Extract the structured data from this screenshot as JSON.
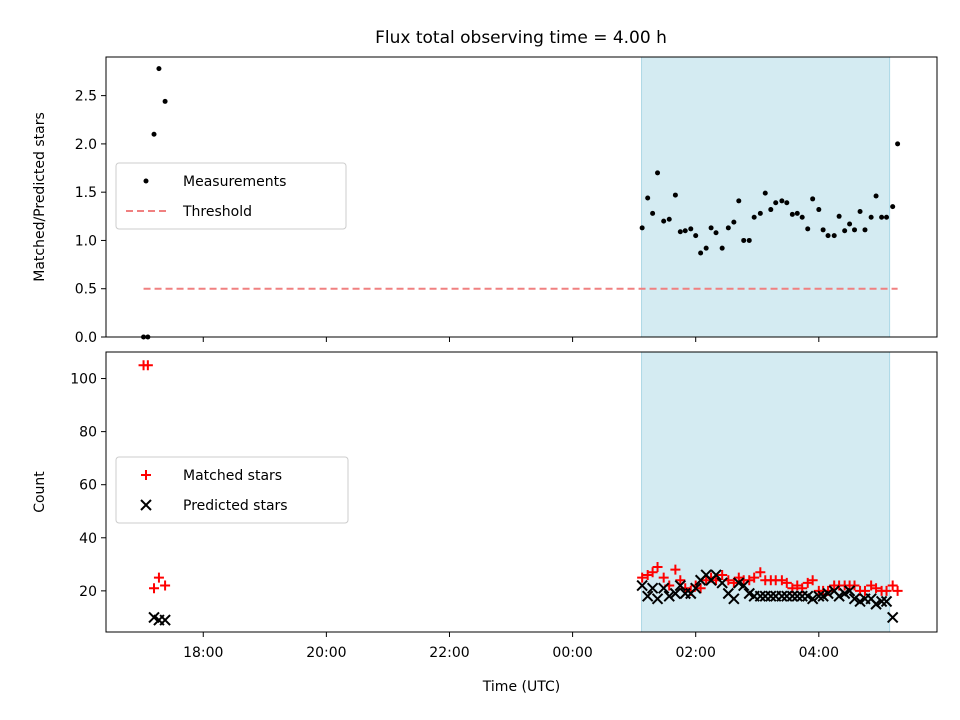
{
  "title": "Flux total observing time = 4.00 h",
  "colors": {
    "measure": "#000000",
    "threshold": "#f08080",
    "matched": "#ff0000",
    "predicted": "#000000",
    "span_fill": "#add8e6"
  },
  "chart_data": [
    {
      "type": "scatter",
      "ylabel": "Matched/Predicted stars",
      "xlim_hours": [
        16.42,
        29.92
      ],
      "ylim": [
        0,
        2.9
      ],
      "yticks": [
        "0.0",
        "0.5",
        "1.0",
        "1.5",
        "2.0",
        "2.5"
      ],
      "highlight_span_hours": [
        25.12,
        29.15
      ],
      "legend": {
        "placement": "center-left",
        "entries": [
          "Measurements",
          "Threshold"
        ]
      },
      "threshold": {
        "name": "Threshold",
        "value": 0.5,
        "x_hours": [
          17.03,
          29.28
        ]
      },
      "series": [
        {
          "name": "Measurements",
          "x_hours": [
            17.03,
            17.1,
            17.2,
            17.28,
            17.38,
            25.13,
            25.22,
            25.3,
            25.38,
            25.48,
            25.57,
            25.67,
            25.75,
            25.83,
            25.92,
            26.0,
            26.08,
            26.17,
            26.25,
            26.33,
            26.43,
            26.53,
            26.62,
            26.7,
            26.78,
            26.87,
            26.95,
            27.05,
            27.13,
            27.22,
            27.3,
            27.4,
            27.48,
            27.57,
            27.65,
            27.73,
            27.82,
            27.9,
            28.0,
            28.07,
            28.15,
            28.25,
            28.33,
            28.42,
            28.5,
            28.58,
            28.67,
            28.75,
            28.85,
            28.93,
            29.02,
            29.1,
            29.2,
            29.28
          ],
          "y": [
            0.0,
            0.0,
            2.1,
            2.78,
            2.44,
            1.13,
            1.44,
            1.28,
            1.7,
            1.2,
            1.22,
            1.47,
            1.09,
            1.1,
            1.12,
            1.05,
            0.87,
            0.92,
            1.13,
            1.08,
            0.92,
            1.13,
            1.19,
            1.41,
            1.0,
            1.0,
            1.24,
            1.28,
            1.49,
            1.32,
            1.39,
            1.41,
            1.39,
            1.27,
            1.28,
            1.24,
            1.12,
            1.43,
            1.32,
            1.11,
            1.05,
            1.05,
            1.25,
            1.1,
            1.17,
            1.11,
            1.3,
            1.11,
            1.24,
            1.46,
            1.24,
            1.24,
            1.35,
            2.0
          ]
        }
      ]
    },
    {
      "type": "scatter",
      "ylabel": "Count",
      "xlabel": "Time (UTC)",
      "xlim_hours": [
        16.42,
        29.92
      ],
      "ylim": [
        4.5,
        110
      ],
      "yticks": [
        "20",
        "40",
        "60",
        "80",
        "100"
      ],
      "xticks": [
        {
          "hour": 18,
          "label": "18:00"
        },
        {
          "hour": 20,
          "label": "20:00"
        },
        {
          "hour": 22,
          "label": "22:00"
        },
        {
          "hour": 24,
          "label": "00:00"
        },
        {
          "hour": 26,
          "label": "02:00"
        },
        {
          "hour": 28,
          "label": "04:00"
        }
      ],
      "highlight_span_hours": [
        25.12,
        29.15
      ],
      "legend": {
        "placement": "center-left",
        "entries": [
          "Matched stars",
          "Predicted stars"
        ]
      },
      "series": [
        {
          "name": "Matched stars",
          "marker": "plus",
          "x_hours": [
            17.03,
            17.1,
            17.2,
            17.28,
            17.38,
            25.13,
            25.22,
            25.3,
            25.38,
            25.48,
            25.57,
            25.67,
            25.75,
            25.83,
            25.92,
            26.0,
            26.08,
            26.17,
            26.25,
            26.33,
            26.43,
            26.53,
            26.62,
            26.7,
            26.78,
            26.87,
            26.95,
            27.05,
            27.13,
            27.22,
            27.3,
            27.4,
            27.48,
            27.57,
            27.65,
            27.73,
            27.82,
            27.9,
            28.0,
            28.07,
            28.15,
            28.25,
            28.33,
            28.42,
            28.5,
            28.58,
            28.67,
            28.75,
            28.85,
            28.93,
            29.02,
            29.1,
            29.2,
            29.28
          ],
          "y": [
            105,
            105,
            21,
            25,
            22,
            25,
            26,
            27,
            29,
            25,
            22,
            28,
            24,
            21,
            20,
            22,
            21,
            24,
            25,
            24,
            26,
            24,
            23,
            25,
            24,
            24,
            25,
            27,
            24,
            24,
            24,
            24,
            23,
            21,
            22,
            21,
            23,
            24,
            20,
            20,
            20,
            22,
            22,
            22,
            22,
            22,
            20,
            20,
            22,
            21,
            20,
            20,
            22,
            20
          ]
        },
        {
          "name": "Predicted stars",
          "marker": "x",
          "x_hours": [
            17.03,
            17.1,
            17.2,
            17.28,
            17.38,
            25.13,
            25.22,
            25.3,
            25.38,
            25.48,
            25.57,
            25.67,
            25.75,
            25.83,
            25.92,
            26.0,
            26.08,
            26.17,
            26.25,
            26.33,
            26.43,
            26.53,
            26.62,
            26.7,
            26.78,
            26.87,
            26.95,
            27.05,
            27.13,
            27.22,
            27.3,
            27.4,
            27.48,
            27.57,
            27.65,
            27.73,
            27.82,
            27.9,
            28.0,
            28.07,
            28.15,
            28.25,
            28.33,
            28.42,
            28.5,
            28.58,
            28.67,
            28.75,
            28.85,
            28.93,
            29.02,
            29.1,
            29.2,
            29.28
          ],
          "y": [
            null,
            null,
            10,
            9,
            9,
            22,
            18,
            21,
            17,
            21,
            18,
            19,
            22,
            19,
            19,
            21,
            24,
            26,
            24,
            26,
            23,
            19,
            17,
            23,
            22,
            19,
            18,
            18,
            18,
            18,
            18,
            18,
            18,
            18,
            18,
            18,
            18,
            17,
            18,
            18,
            19,
            20,
            18,
            19,
            20,
            17,
            16,
            17,
            17,
            15,
            16,
            16,
            10,
            null
          ]
        }
      ]
    }
  ]
}
